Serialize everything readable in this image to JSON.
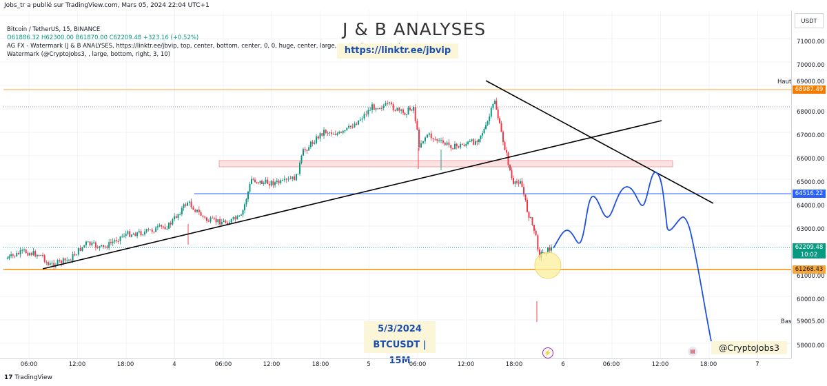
{
  "header": {
    "published_by": "Jobs_tr a publié sur TradingView.com, Mars 05, 2024 22:04 UTC+1"
  },
  "legend": {
    "symbol_line": "Bitcoin / TetherUS, 15, BINANCE",
    "ohlc": "O61886.32 H62300.00 B61870.00 C62209.48 +323.16 (+0.52%)",
    "indicator1": "AG FX - Watermark (J & B ANALYSES, https://linktr.ee/jbvip, top, center, bottom, center, 0, 0, huge, center, large, center, large, center)",
    "indicator2": "Watermark (@CryptoJobs3, , large, bottom, right, 3, 10)"
  },
  "watermark": {
    "title": "J & B ANALYSES",
    "link": "https://linktr.ee/jbvip",
    "date": "5/3/2024",
    "pair": "BTCUSDT | 15M",
    "handle": "@CryptoJobs3"
  },
  "price_scale": {
    "currency": "USDT",
    "ticks": [
      "71000.00",
      "70000.00",
      "68000.00",
      "67000.00",
      "66000.00",
      "65000.00",
      "64000.00",
      "63000.00",
      "61000.00",
      "60000.00",
      "58000.00"
    ],
    "high_label": "Haut",
    "high_value": "69000.00",
    "low_label": "Bas",
    "low_value": "59005.00",
    "tag_resistance": "68987.49",
    "tag_blue": "64516.22",
    "tag_current": "62209.48",
    "tag_countdown": "10:02",
    "tag_support": "61268.43"
  },
  "time_scale": {
    "ticks": [
      "06:00",
      "12:00",
      "18:00",
      "4",
      "06:00",
      "12:00",
      "18:00",
      "5",
      "06:00",
      "12:00",
      "18:00",
      "6",
      "06:00",
      "12:00",
      "18:00",
      "7"
    ]
  },
  "footer": {
    "brand": "TradingView"
  },
  "colors": {
    "up": "#089981",
    "down": "#f23645",
    "orange": "#f7a63c",
    "blue": "#2962ff",
    "forecast": "#1e4fe0"
  }
}
